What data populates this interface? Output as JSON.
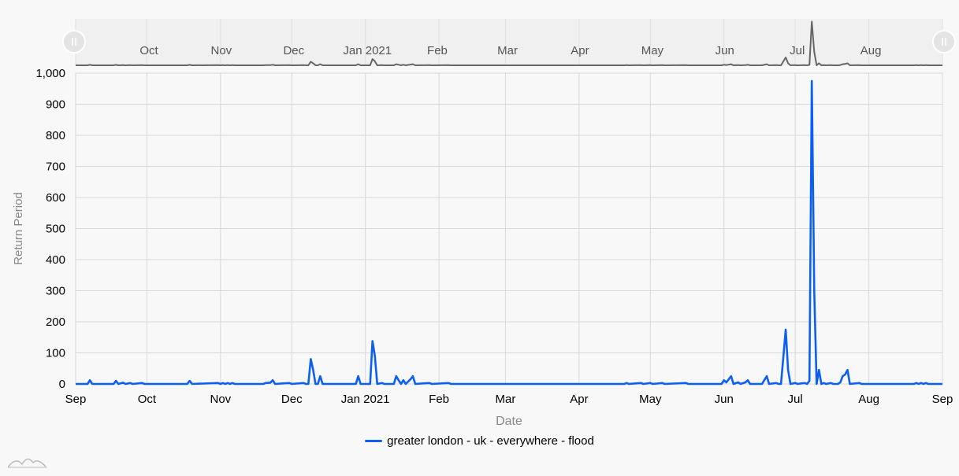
{
  "chart_data": {
    "type": "line",
    "xlabel": "Date",
    "ylabel": "Return Period",
    "ylim": [
      0,
      1000
    ],
    "yticks": [
      0,
      100,
      200,
      300,
      400,
      500,
      600,
      700,
      800,
      900,
      1000
    ],
    "ytick_labels": [
      "0",
      "100",
      "200",
      "300",
      "400",
      "500",
      "600",
      "700",
      "800",
      "900",
      "1,000"
    ],
    "xlim": [
      "2020-09-01",
      "2021-09-01"
    ],
    "xticks": [
      {
        "date": "2020-09-01",
        "label": "Sep"
      },
      {
        "date": "2020-10-01",
        "label": "Oct"
      },
      {
        "date": "2020-11-01",
        "label": "Nov"
      },
      {
        "date": "2020-12-01",
        "label": "Dec"
      },
      {
        "date": "2021-01-01",
        "label": "Jan 2021"
      },
      {
        "date": "2021-02-01",
        "label": "Feb"
      },
      {
        "date": "2021-03-01",
        "label": "Mar"
      },
      {
        "date": "2021-04-01",
        "label": "Apr"
      },
      {
        "date": "2021-05-01",
        "label": "May"
      },
      {
        "date": "2021-06-01",
        "label": "Jun"
      },
      {
        "date": "2021-07-01",
        "label": "Jul"
      },
      {
        "date": "2021-08-01",
        "label": "Aug"
      },
      {
        "date": "2021-09-01",
        "label": "Sep"
      }
    ],
    "navigator_labels": [
      "Oct",
      "Nov",
      "Dec",
      "Jan 2021",
      "Feb",
      "Mar",
      "Apr",
      "May",
      "Jun",
      "Jul",
      "Aug"
    ],
    "grid": true,
    "legend_position": "bottom-center",
    "series": [
      {
        "name": "greater london - uk - everywhere - flood",
        "color": "#0b5ff2",
        "points": [
          [
            "2020-09-01",
            0
          ],
          [
            "2020-09-06",
            0
          ],
          [
            "2020-09-07",
            12
          ],
          [
            "2020-09-08",
            0
          ],
          [
            "2020-09-17",
            0
          ],
          [
            "2020-09-18",
            10
          ],
          [
            "2020-09-19",
            0
          ],
          [
            "2020-09-21",
            4
          ],
          [
            "2020-09-22",
            0
          ],
          [
            "2020-09-24",
            3
          ],
          [
            "2020-09-25",
            0
          ],
          [
            "2020-09-29",
            3
          ],
          [
            "2020-09-30",
            0
          ],
          [
            "2020-10-18",
            0
          ],
          [
            "2020-10-19",
            10
          ],
          [
            "2020-10-20",
            0
          ],
          [
            "2020-10-31",
            3
          ],
          [
            "2020-11-01",
            0
          ],
          [
            "2020-11-02",
            3
          ],
          [
            "2020-11-03",
            0
          ],
          [
            "2020-11-04",
            3
          ],
          [
            "2020-11-05",
            0
          ],
          [
            "2020-11-06",
            3
          ],
          [
            "2020-11-07",
            0
          ],
          [
            "2020-11-19",
            0
          ],
          [
            "2020-11-20",
            3
          ],
          [
            "2020-11-22",
            4
          ],
          [
            "2020-11-23",
            12
          ],
          [
            "2020-11-24",
            0
          ],
          [
            "2020-11-30",
            3
          ],
          [
            "2020-12-01",
            0
          ],
          [
            "2020-12-06",
            3
          ],
          [
            "2020-12-07",
            0
          ],
          [
            "2020-12-08",
            0
          ],
          [
            "2020-12-09",
            80
          ],
          [
            "2020-12-10",
            45
          ],
          [
            "2020-12-11",
            0
          ],
          [
            "2020-12-12",
            0
          ],
          [
            "2020-12-13",
            25
          ],
          [
            "2020-12-14",
            0
          ],
          [
            "2020-12-28",
            0
          ],
          [
            "2020-12-29",
            25
          ],
          [
            "2020-12-30",
            0
          ],
          [
            "2021-01-03",
            0
          ],
          [
            "2021-01-04",
            138
          ],
          [
            "2021-01-05",
            90
          ],
          [
            "2021-01-06",
            0
          ],
          [
            "2021-01-08",
            3
          ],
          [
            "2021-01-09",
            0
          ],
          [
            "2021-01-13",
            0
          ],
          [
            "2021-01-14",
            25
          ],
          [
            "2021-01-15",
            12
          ],
          [
            "2021-01-16",
            0
          ],
          [
            "2021-01-17",
            12
          ],
          [
            "2021-01-18",
            0
          ],
          [
            "2021-01-20",
            15
          ],
          [
            "2021-01-21",
            25
          ],
          [
            "2021-01-22",
            0
          ],
          [
            "2021-01-28",
            3
          ],
          [
            "2021-01-29",
            0
          ],
          [
            "2021-02-05",
            3
          ],
          [
            "2021-02-06",
            0
          ],
          [
            "2021-04-20",
            0
          ],
          [
            "2021-04-21",
            3
          ],
          [
            "2021-04-22",
            0
          ],
          [
            "2021-04-27",
            3
          ],
          [
            "2021-04-28",
            0
          ],
          [
            "2021-05-01",
            3
          ],
          [
            "2021-05-02",
            0
          ],
          [
            "2021-05-06",
            3
          ],
          [
            "2021-05-07",
            0
          ],
          [
            "2021-05-16",
            3
          ],
          [
            "2021-05-17",
            0
          ],
          [
            "2021-05-31",
            0
          ],
          [
            "2021-06-01",
            12
          ],
          [
            "2021-06-02",
            5
          ],
          [
            "2021-06-04",
            25
          ],
          [
            "2021-06-05",
            0
          ],
          [
            "2021-06-07",
            5
          ],
          [
            "2021-06-08",
            0
          ],
          [
            "2021-06-10",
            5
          ],
          [
            "2021-06-11",
            12
          ],
          [
            "2021-06-12",
            0
          ],
          [
            "2021-06-17",
            0
          ],
          [
            "2021-06-19",
            25
          ],
          [
            "2021-06-20",
            0
          ],
          [
            "2021-06-23",
            3
          ],
          [
            "2021-06-24",
            0
          ],
          [
            "2021-06-25",
            0
          ],
          [
            "2021-06-27",
            175
          ],
          [
            "2021-06-28",
            45
          ],
          [
            "2021-06-29",
            0
          ],
          [
            "2021-07-01",
            3
          ],
          [
            "2021-07-02",
            0
          ],
          [
            "2021-07-05",
            3
          ],
          [
            "2021-07-06",
            0
          ],
          [
            "2021-07-07",
            10
          ],
          [
            "2021-07-08",
            975
          ],
          [
            "2021-07-09",
            300
          ],
          [
            "2021-07-10",
            0
          ],
          [
            "2021-07-11",
            45
          ],
          [
            "2021-07-12",
            0
          ],
          [
            "2021-07-13",
            3
          ],
          [
            "2021-07-14",
            0
          ],
          [
            "2021-07-16",
            3
          ],
          [
            "2021-07-17",
            0
          ],
          [
            "2021-07-19",
            0
          ],
          [
            "2021-07-20",
            5
          ],
          [
            "2021-07-21",
            25
          ],
          [
            "2021-07-22",
            30
          ],
          [
            "2021-07-23",
            45
          ],
          [
            "2021-07-24",
            0
          ],
          [
            "2021-07-28",
            3
          ],
          [
            "2021-07-29",
            0
          ],
          [
            "2021-08-20",
            0
          ],
          [
            "2021-08-21",
            3
          ],
          [
            "2021-08-22",
            0
          ],
          [
            "2021-08-23",
            3
          ],
          [
            "2021-08-24",
            0
          ],
          [
            "2021-08-25",
            3
          ],
          [
            "2021-08-26",
            0
          ],
          [
            "2021-09-01",
            0
          ]
        ]
      }
    ]
  },
  "colors": {
    "grid": "#d9d9d9",
    "navigator_bg": "#f0f0f0",
    "navigator_line": "#666666",
    "axis_text": "#000000",
    "title_text": "#888888"
  },
  "icons": {
    "scrollbar_grip": "grip-handle-icon",
    "logo": "amcharts-logo-icon"
  }
}
